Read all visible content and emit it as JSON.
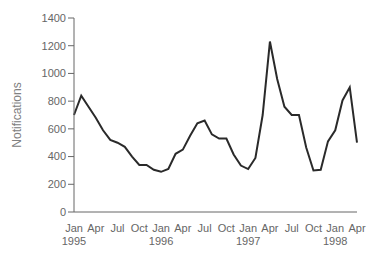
{
  "chart_data": {
    "type": "line",
    "ylabel": "Notifications",
    "categories": [
      "Jan\n1995",
      null,
      null,
      "Apr",
      null,
      null,
      "Jul",
      null,
      null,
      "Oct",
      null,
      null,
      "Jan\n1996",
      null,
      null,
      "Apr",
      null,
      null,
      "Jul",
      null,
      null,
      "Oct",
      null,
      null,
      "Jan\n1997",
      null,
      null,
      "Apr",
      null,
      null,
      "Jul",
      null,
      null,
      "Oct",
      null,
      null,
      "Jan\n1998",
      null,
      null,
      "Apr"
    ],
    "values": [
      700,
      840,
      760,
      680,
      590,
      520,
      500,
      470,
      400,
      340,
      340,
      305,
      290,
      310,
      420,
      450,
      550,
      640,
      660,
      560,
      530,
      530,
      415,
      335,
      310,
      390,
      700,
      1230,
      960,
      760,
      700,
      700,
      465,
      300,
      305,
      510,
      590,
      805,
      900,
      500
    ],
    "color": "#2a2a2a",
    "ylim": [
      0,
      1400
    ],
    "yticks": [
      0,
      200,
      400,
      600,
      800,
      1000,
      1200,
      1400
    ],
    "grid": false
  }
}
